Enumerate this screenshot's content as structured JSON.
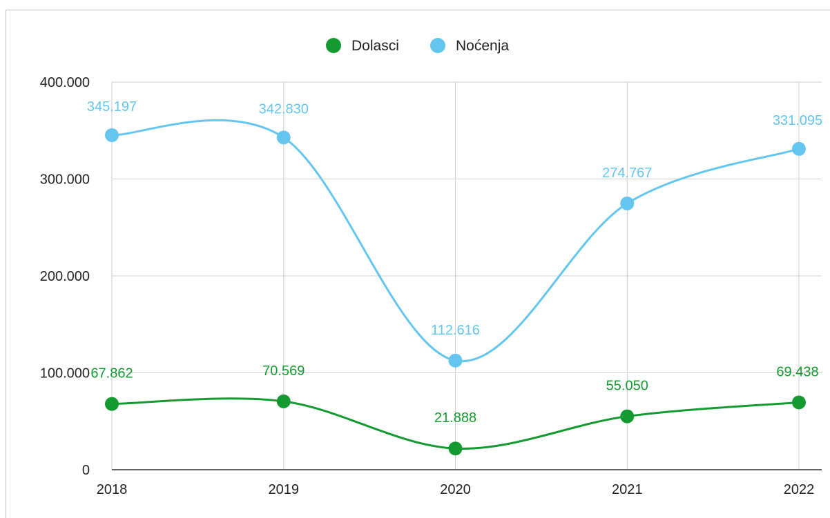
{
  "chart_data": {
    "type": "line",
    "categories": [
      "2018",
      "2019",
      "2020",
      "2021",
      "2022"
    ],
    "series": [
      {
        "name": "Dolasci",
        "color": "#149a31",
        "values": [
          67862,
          70569,
          21888,
          55050,
          69438
        ],
        "labels": [
          "67.862",
          "70.569",
          "21.888",
          "55.050",
          "69.438"
        ]
      },
      {
        "name": "Noćenja",
        "color": "#64c6ee",
        "values": [
          345197,
          342830,
          112616,
          274767,
          331095
        ],
        "labels": [
          "345.197",
          "342.830",
          "112.616",
          "274.767",
          "331.095"
        ]
      }
    ],
    "ylim": [
      0,
      400000
    ],
    "yticks": [
      0,
      100000,
      200000,
      300000,
      400000
    ],
    "ytick_labels": [
      "0",
      "100.000",
      "200.000",
      "300.000",
      "400.000"
    ],
    "grid": true,
    "smooth": true,
    "legend_position": "top"
  }
}
